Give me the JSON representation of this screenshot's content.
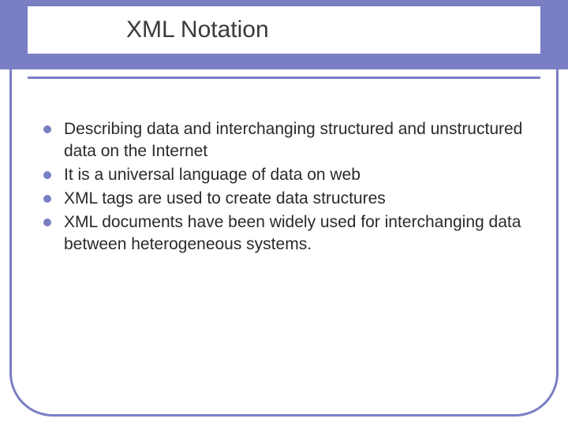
{
  "slide": {
    "title": "XML Notation",
    "title_fontsize": 30,
    "title_color": "#3a3a3a",
    "accent_color": "#7a7fc4",
    "background_color": "#ffffff",
    "body_fontsize": 21,
    "body_line_height": 28,
    "body_color": "#2a2a2a",
    "bullet_color": "#7a7fc4",
    "bullet_size": 10,
    "frame_border_width": 3,
    "frame_corner_radius": 55,
    "bullets": [
      "Describing data and interchanging structured and unstructured data on the Internet",
      "It is a universal language of data on web",
      "XML tags are used to create data structures",
      "XML documents have been widely used for interchanging data between heterogeneous systems."
    ]
  }
}
